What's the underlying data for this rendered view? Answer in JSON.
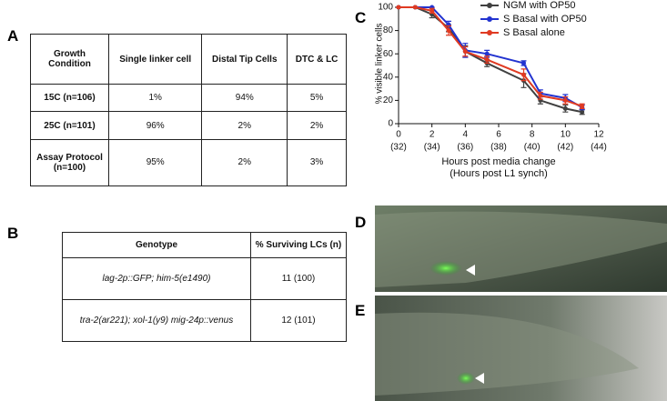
{
  "panel_labels": [
    "A",
    "B",
    "C",
    "D",
    "E"
  ],
  "table_a": {
    "header": [
      "Growth Condition",
      "Single linker cell",
      "Distal Tip Cells",
      "DTC & LC"
    ],
    "rows": [
      [
        "15C (n=106)",
        "1%",
        "94%",
        "5%"
      ],
      [
        "25C (n=101)",
        "96%",
        "2%",
        "2%"
      ],
      [
        "Assay Protocol (n=100)",
        "95%",
        "2%",
        "3%"
      ]
    ]
  },
  "table_b": {
    "header": [
      "Genotype",
      "% Surviving LCs (n)"
    ],
    "rows": [
      [
        "lag-2p::GFP; him-5(e1490)",
        "11 (100)"
      ],
      [
        "tra-2(ar221); xol-1(y9) mig-24p::venus",
        "12 (101)"
      ]
    ]
  },
  "chart_data": {
    "type": "line",
    "xlabel": "Hours post media change",
    "xlabel2": "(Hours post L1 synch)",
    "ylabel": "% visible linker cells",
    "x": [
      0,
      1,
      2,
      3,
      4,
      5.3,
      7.5,
      8.5,
      10,
      11
    ],
    "series": [
      {
        "name": "NGM with OP50",
        "color": "#404040",
        "values": [
          100,
          100,
          94,
          82,
          62,
          52,
          37,
          20,
          13,
          10
        ],
        "errors": [
          0,
          0,
          3,
          3,
          5,
          3,
          6,
          3,
          3,
          2
        ]
      },
      {
        "name": "S Basal with OP50",
        "color": "#2233d0",
        "values": [
          100,
          100,
          100,
          85,
          63,
          60,
          52,
          26,
          22,
          14
        ],
        "errors": [
          0,
          0,
          0,
          3,
          6,
          3,
          2,
          3,
          3,
          2
        ]
      },
      {
        "name": "S Basal alone",
        "color": "#e03a22",
        "values": [
          100,
          100,
          97,
          80,
          62,
          55,
          42,
          24,
          20,
          15
        ],
        "errors": [
          0,
          0,
          2,
          4,
          4,
          3,
          5,
          3,
          3,
          2
        ]
      }
    ],
    "xlim": [
      0,
      12
    ],
    "ylim": [
      0,
      100
    ],
    "xticks": [
      0,
      2,
      4,
      6,
      8,
      10,
      12
    ],
    "xticks2": [
      {
        "value": 0,
        "label": "(32)"
      },
      {
        "value": 2,
        "label": "(34)"
      },
      {
        "value": 4,
        "label": "(36)"
      },
      {
        "value": 6,
        "label": "(38)"
      },
      {
        "value": 8,
        "label": "(40)"
      },
      {
        "value": 10,
        "label": "(42)"
      },
      {
        "value": 12,
        "label": "(44)"
      }
    ],
    "yticks": [
      0,
      20,
      40,
      60,
      80,
      100
    ],
    "legend": "top-right"
  }
}
